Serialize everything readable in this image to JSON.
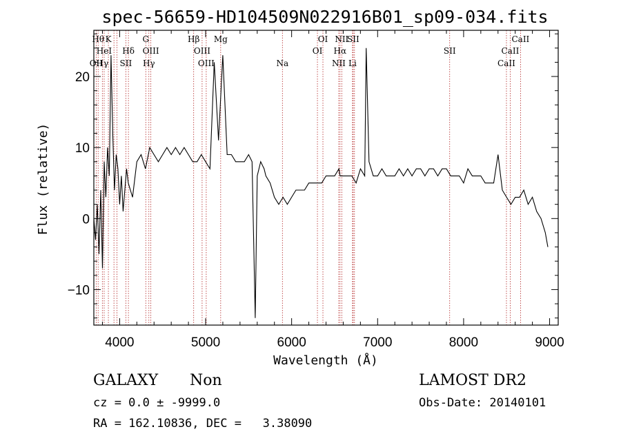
{
  "chart_data": {
    "type": "line",
    "title": "spec-56659-HD104509N022916B01_sp09-034.fits",
    "xlabel": "Wavelength (Å)",
    "ylabel": "Flux (relative)",
    "xlim": [
      3700,
      9100
    ],
    "ylim": [
      -15,
      26.5
    ],
    "xticks": [
      4000,
      5000,
      6000,
      7000,
      8000,
      9000
    ],
    "yticks": [
      -10,
      0,
      10,
      20
    ],
    "line_color": "#000000",
    "marker_color": "#b22222",
    "series": [
      {
        "x": [
          3700,
          3720,
          3740,
          3760,
          3780,
          3800,
          3820,
          3840,
          3860,
          3880,
          3900,
          3920,
          3940,
          3960,
          3980,
          4000,
          4020,
          4040,
          4060,
          4080,
          4100,
          4150,
          4200,
          4250,
          4300,
          4350,
          4400,
          4450,
          4500,
          4550,
          4600,
          4650,
          4700,
          4750,
          4800,
          4850,
          4900,
          4950,
          5000,
          5050,
          5100,
          5150,
          5200,
          5250,
          5300,
          5350,
          5400,
          5450,
          5500,
          5540,
          5577,
          5600,
          5640,
          5680,
          5700,
          5750,
          5800,
          5850,
          5900,
          5950,
          6000,
          6050,
          6100,
          6150,
          6200,
          6250,
          6300,
          6350,
          6400,
          6450,
          6500,
          6550,
          6563,
          6600,
          6650,
          6700,
          6750,
          6800,
          6850,
          6867,
          6900,
          6950,
          7000,
          7050,
          7100,
          7150,
          7200,
          7250,
          7300,
          7350,
          7400,
          7450,
          7500,
          7550,
          7600,
          7650,
          7700,
          7750,
          7800,
          7850,
          7900,
          7950,
          8000,
          8050,
          8100,
          8150,
          8200,
          8250,
          8300,
          8350,
          8400,
          8450,
          8500,
          8550,
          8600,
          8650,
          8700,
          8750,
          8800,
          8850,
          8900,
          8950,
          8980
        ],
        "y": [
          0,
          -3,
          2,
          -5,
          4,
          -7,
          8,
          3,
          10,
          6,
          23,
          12,
          4,
          9,
          7,
          2,
          6,
          1,
          4,
          7,
          5,
          3,
          8,
          9,
          7,
          10,
          9,
          8,
          9,
          10,
          9,
          10,
          9,
          10,
          9,
          8,
          8,
          9,
          8,
          7,
          22,
          11,
          23,
          9,
          9,
          8,
          8,
          8,
          9,
          8,
          -14,
          6,
          8,
          7,
          6,
          5,
          3,
          2,
          3,
          2,
          3,
          4,
          4,
          4,
          5,
          5,
          5,
          5,
          6,
          6,
          6,
          7,
          6,
          6,
          6,
          6,
          5,
          7,
          6,
          24,
          8,
          6,
          6,
          7,
          6,
          6,
          6,
          7,
          6,
          7,
          6,
          7,
          7,
          6,
          7,
          7,
          6,
          7,
          7,
          6,
          6,
          6,
          5,
          7,
          6,
          6,
          6,
          5,
          5,
          5,
          9,
          4,
          3,
          2,
          3,
          3,
          4,
          2,
          3,
          1,
          0,
          -2,
          -4
        ]
      }
    ],
    "line_markers": [
      {
        "wave": 3727,
        "label": "OII",
        "row": 3
      },
      {
        "wave": 3750,
        "label": "Hθ",
        "row": 1
      },
      {
        "wave": 3799,
        "label": "Hγ",
        "row": 3
      },
      {
        "wave": 3820,
        "label": "HeI",
        "row": 2
      },
      {
        "wave": 3869,
        "label": "K",
        "row": 1
      },
      {
        "wave": 3934,
        "label": "",
        "row": 0
      },
      {
        "wave": 3968,
        "label": "",
        "row": 0
      },
      {
        "wave": 4102,
        "label": "Hδ",
        "row": 2
      },
      {
        "wave": 4072,
        "label": "SII",
        "row": 3
      },
      {
        "wave": 4304,
        "label": "G",
        "row": 1
      },
      {
        "wave": 4340,
        "label": "Hγ",
        "row": 3
      },
      {
        "wave": 4363,
        "label": "OIII",
        "row": 2
      },
      {
        "wave": 4861,
        "label": "Hβ",
        "row": 1
      },
      {
        "wave": 4959,
        "label": "OIII",
        "row": 2
      },
      {
        "wave": 5007,
        "label": "OIII",
        "row": 3
      },
      {
        "wave": 5175,
        "label": "Mg",
        "row": 1
      },
      {
        "wave": 5893,
        "label": "Na",
        "row": 3
      },
      {
        "wave": 6300,
        "label": "OI",
        "row": 2
      },
      {
        "wave": 6364,
        "label": "OI",
        "row": 1
      },
      {
        "wave": 6548,
        "label": "NII",
        "row": 3
      },
      {
        "wave": 6563,
        "label": "Hα",
        "row": 2
      },
      {
        "wave": 6583,
        "label": "NII",
        "row": 1
      },
      {
        "wave": 6708,
        "label": "Li",
        "row": 3
      },
      {
        "wave": 6716,
        "label": "SII",
        "row": 1
      },
      {
        "wave": 6731,
        "label": "",
        "row": 0
      },
      {
        "wave": 7838,
        "label": "SII",
        "row": 2
      },
      {
        "wave": 8498,
        "label": "CaII",
        "row": 3
      },
      {
        "wave": 8542,
        "label": "CaII",
        "row": 2
      },
      {
        "wave": 8662,
        "label": "CaII",
        "row": 1
      }
    ]
  },
  "info": {
    "class_label": "GALAXY",
    "subclass_label": "Non",
    "survey_label": "LAMOST DR2",
    "cz_line": "cz = 0.0 ± -9999.0",
    "obs_date_line": "Obs-Date: 20140101",
    "radec_line": "RA = 162.10836, DEC =   3.38090"
  }
}
